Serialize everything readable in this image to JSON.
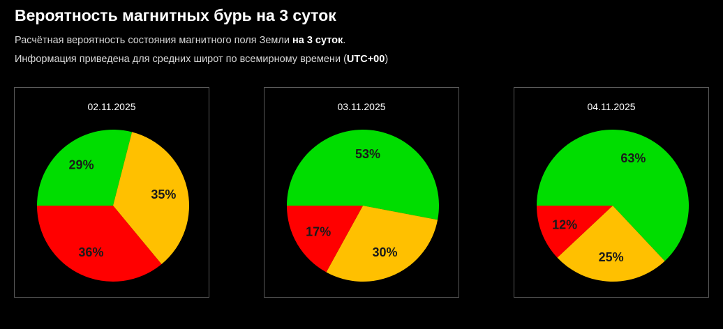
{
  "header": {
    "title": "Вероятность магнитных бурь на 3 суток",
    "line1_text": "Расчётная вероятность состояния магнитного поля Земли ",
    "line1_bold": "на 3 суток",
    "line1_end": ".",
    "line2_text": "Информация приведена для средних широт по всемирному времени (",
    "line2_bold": "UTC+00",
    "line2_end": ")"
  },
  "colors": {
    "green": "#00dd00",
    "yellow": "#ffc000",
    "red": "#ff0000"
  },
  "chart_data": [
    {
      "type": "pie",
      "title": "02.11.2025",
      "categories": [
        "green",
        "yellow",
        "red"
      ],
      "values": [
        29,
        35,
        36
      ],
      "labels": [
        "29%",
        "35%",
        "36%"
      ],
      "start": "9 o'clock, clockwise"
    },
    {
      "type": "pie",
      "title": "03.11.2025",
      "categories": [
        "green",
        "yellow",
        "red"
      ],
      "values": [
        53,
        30,
        17
      ],
      "labels": [
        "53%",
        "30%",
        "17%"
      ],
      "start": "9 o'clock, clockwise"
    },
    {
      "type": "pie",
      "title": "04.11.2025",
      "categories": [
        "green",
        "yellow",
        "red"
      ],
      "values": [
        63,
        25,
        12
      ],
      "labels": [
        "63%",
        "25%",
        "12%"
      ],
      "start": "9 o'clock, clockwise"
    }
  ]
}
